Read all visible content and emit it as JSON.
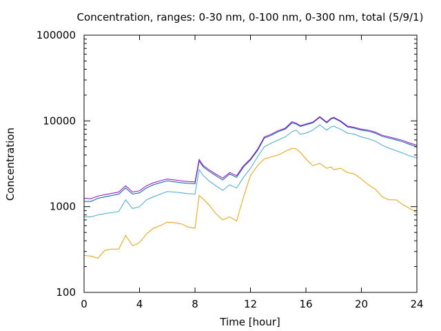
{
  "chart_data": {
    "type": "line",
    "title": "Concentration, ranges: 0-30 nm, 0-100 nm, 0-300 nm, total (5/9/1)",
    "xlabel": "Time [hour]",
    "ylabel": "Concentration",
    "xlim": [
      0,
      24
    ],
    "ylim": [
      100,
      100000
    ],
    "yscale": "log",
    "grid": false,
    "legend": "none",
    "x_ticks": [
      "0",
      "4",
      "8",
      "12",
      "16",
      "20",
      "24"
    ],
    "y_ticks": [
      "100",
      "1000",
      "10000",
      "100000"
    ],
    "x": [
      0,
      0.5,
      1,
      1.5,
      2,
      2.5,
      3,
      3.5,
      4,
      4.5,
      5,
      5.5,
      6,
      6.5,
      7,
      7.5,
      8,
      8.3,
      8.6,
      9,
      9.5,
      10,
      10.5,
      11,
      11.5,
      12,
      12.5,
      13,
      13.5,
      14,
      14.5,
      15,
      15.3,
      15.6,
      16,
      16.5,
      17,
      17.5,
      17.8,
      18,
      18.5,
      19,
      19.5,
      20,
      20.5,
      21,
      21.5,
      22,
      22.5,
      23,
      23.5,
      24
    ],
    "series": [
      {
        "color": "#e6a000",
        "values": [
          270,
          265,
          250,
          310,
          320,
          320,
          460,
          350,
          380,
          480,
          560,
          600,
          660,
          650,
          630,
          580,
          560,
          1350,
          1220,
          1050,
          830,
          700,
          760,
          680,
          1300,
          2300,
          3000,
          3600,
          3800,
          4000,
          4400,
          4800,
          4700,
          4300,
          3600,
          3000,
          3200,
          2800,
          2900,
          2700,
          2800,
          2500,
          2400,
          2100,
          1800,
          1600,
          1300,
          1200,
          1200,
          1050,
          950,
          850
        ]
      },
      {
        "color": "#40a8d8",
        "values": [
          760,
          760,
          800,
          830,
          850,
          880,
          1200,
          950,
          1000,
          1200,
          1300,
          1400,
          1500,
          1480,
          1450,
          1420,
          1400,
          2700,
          2300,
          2000,
          1750,
          1550,
          1800,
          1650,
          2200,
          2800,
          3800,
          5000,
          5500,
          6000,
          6500,
          7500,
          7800,
          7000,
          7200,
          7800,
          9000,
          7800,
          8500,
          8700,
          8000,
          7200,
          7000,
          6500,
          6200,
          5800,
          5200,
          4800,
          4500,
          4200,
          3900,
          3700
        ]
      },
      {
        "color": "#006090",
        "values": [
          1150,
          1150,
          1250,
          1300,
          1350,
          1400,
          1650,
          1400,
          1450,
          1650,
          1800,
          1900,
          2000,
          1950,
          1900,
          1870,
          1850,
          3400,
          2900,
          2600,
          2300,
          2050,
          2400,
          2200,
          2900,
          3500,
          4500,
          6300,
          6800,
          7500,
          8000,
          9500,
          9200,
          8600,
          9000,
          9500,
          11000,
          9500,
          10500,
          10800,
          9800,
          8500,
          8200,
          7800,
          7600,
          7200,
          6600,
          6300,
          6000,
          5700,
          5300,
          5000
        ]
      },
      {
        "color": "#9400d3",
        "values": [
          1250,
          1240,
          1330,
          1380,
          1430,
          1480,
          1750,
          1480,
          1530,
          1750,
          1900,
          2000,
          2100,
          2050,
          2000,
          1960,
          1940,
          3550,
          3000,
          2700,
          2400,
          2150,
          2500,
          2300,
          3000,
          3600,
          4650,
          6500,
          7000,
          7700,
          8200,
          9800,
          9400,
          8800,
          9200,
          9700,
          11200,
          9700,
          10700,
          11000,
          10000,
          8700,
          8400,
          8000,
          7800,
          7400,
          6800,
          6500,
          6200,
          5900,
          5500,
          5200
        ]
      }
    ]
  }
}
